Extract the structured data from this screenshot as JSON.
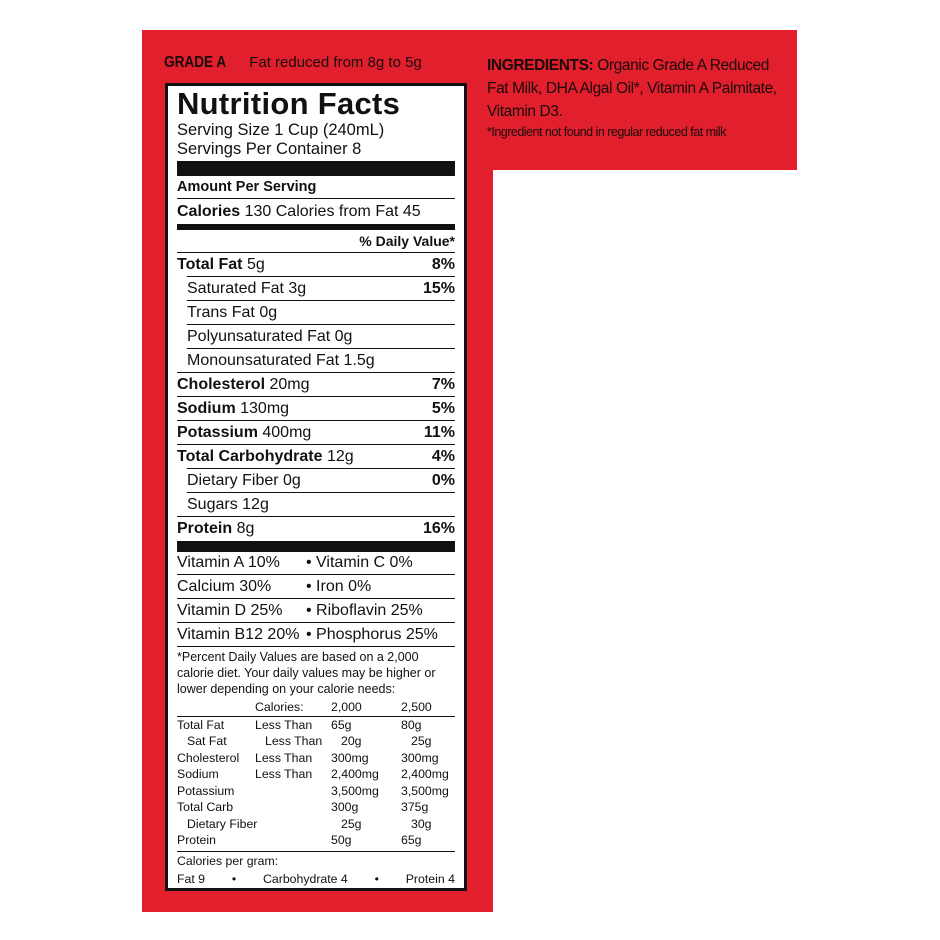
{
  "header": {
    "grade": "GRADE A",
    "claim": "Fat reduced from 8g to 5g"
  },
  "ingredients": {
    "label": "INGREDIENTS:",
    "text": "Organic Grade A Reduced Fat Milk, DHA Algal Oil*, Vitamin A Palmitate, Vitamin D3.",
    "note": "*Ingredient not found in regular reduced fat milk"
  },
  "label": {
    "title": "Nutrition Facts",
    "serving_size": "Serving Size 1 Cup (240mL)",
    "servings_per_container": "Servings Per Container 8",
    "amount_per_serving": "Amount Per Serving",
    "calories_label": "Calories",
    "calories_value": "130",
    "calories_from_fat": "Calories from Fat 45",
    "daily_value_header": "% Daily Value*",
    "nutrients": [
      {
        "name": "Total Fat",
        "amount": "5g",
        "dv": "8%",
        "bold": true,
        "indent": false
      },
      {
        "name": "Saturated Fat",
        "amount": "3g",
        "dv": "15%",
        "bold": false,
        "indent": true
      },
      {
        "name": "Trans Fat",
        "amount": "0g",
        "dv": "",
        "bold": false,
        "indent": true
      },
      {
        "name": "Polyunsaturated Fat",
        "amount": "0g",
        "dv": "",
        "bold": false,
        "indent": true
      },
      {
        "name": "Monounsaturated Fat",
        "amount": "1.5g",
        "dv": "",
        "bold": false,
        "indent": true
      },
      {
        "name": "Cholesterol",
        "amount": "20mg",
        "dv": "7%",
        "bold": true,
        "indent": false
      },
      {
        "name": "Sodium",
        "amount": "130mg",
        "dv": "5%",
        "bold": true,
        "indent": false
      },
      {
        "name": "Potassium",
        "amount": "400mg",
        "dv": "11%",
        "bold": true,
        "indent": false
      },
      {
        "name": "Total Carbohydrate",
        "amount": "12g",
        "dv": "4%",
        "bold": true,
        "indent": false
      },
      {
        "name": "Dietary Fiber",
        "amount": "0g",
        "dv": "0%",
        "bold": false,
        "indent": true
      },
      {
        "name": "Sugars",
        "amount": "12g",
        "dv": "",
        "bold": false,
        "indent": true
      },
      {
        "name": "Protein",
        "amount": "8g",
        "dv": "16%",
        "bold": true,
        "indent": false
      }
    ],
    "vitamins": [
      [
        "Vitamin A 10%",
        "• Vitamin C 0%"
      ],
      [
        "Calcium 30%",
        "• Iron 0%"
      ],
      [
        "Vitamin D 25%",
        "• Riboflavin 25%"
      ],
      [
        "Vitamin B12 20%",
        "• Phosphorus 25%"
      ]
    ],
    "footnote": "*Percent Daily Values are based on a 2,000 calorie diet. Your daily values may be higher or lower depending on your calorie needs:",
    "dv_table": {
      "header": [
        "",
        "Calories:",
        "2,000",
        "2,500"
      ],
      "rows": [
        [
          "Total Fat",
          "Less Than",
          "65g",
          "80g"
        ],
        [
          "  Sat Fat",
          "Less Than",
          "20g",
          "25g"
        ],
        [
          "Cholesterol",
          "Less Than",
          "300mg",
          "300mg"
        ],
        [
          "Sodium",
          "Less Than",
          "2,400mg",
          "2,400mg"
        ],
        [
          "Potassium",
          "",
          "3,500mg",
          "3,500mg"
        ],
        [
          "Total Carb",
          "",
          "300g",
          "375g"
        ],
        [
          "  Dietary Fiber",
          "",
          "25g",
          "30g"
        ],
        [
          "Protein",
          "",
          "50g",
          "65g"
        ]
      ]
    },
    "calories_per_gram": {
      "label": "Calories per gram:",
      "fat": "Fat 9",
      "carb": "Carbohydrate 4",
      "protein": "Protein 4",
      "separator": "•"
    }
  },
  "colors": {
    "panel": "#e21f2d",
    "text": "#111111"
  }
}
